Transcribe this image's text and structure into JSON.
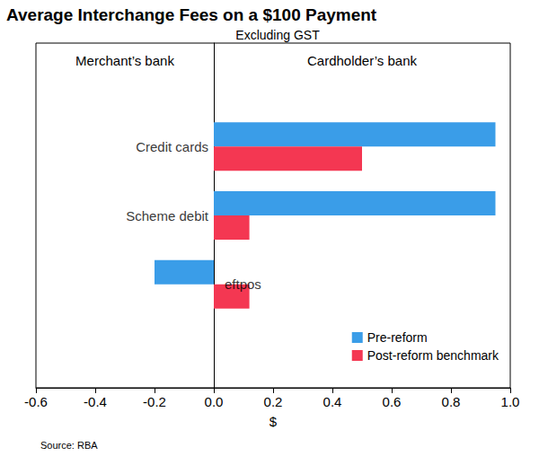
{
  "chart_data": {
    "type": "bar",
    "orientation": "horizontal",
    "title": "Average Interchange Fees on a $100 Payment",
    "subtitle": "Excluding GST",
    "categories": [
      "Credit cards",
      "Scheme debit",
      "eftpos"
    ],
    "series": [
      {
        "name": "Pre-reform",
        "color": "#3a9de8",
        "values": [
          0.95,
          0.95,
          -0.2
        ]
      },
      {
        "name": "Post-reform benchmark",
        "color": "#f43752",
        "values": [
          0.5,
          0.12,
          0.12
        ]
      }
    ],
    "xlabel": "$",
    "xlim": [
      -0.6,
      1.0
    ],
    "xticks": [
      -0.6,
      -0.4,
      -0.2,
      {
        "value": 0,
        "label": "0.0"
      },
      0.2,
      0.4,
      0.6,
      0.8,
      {
        "value": 1,
        "label": "1.0"
      }
    ],
    "annotations": [
      "Merchant’s bank",
      "Cardholder’s bank"
    ],
    "source": "Source: RBA",
    "legend": "bottom-right",
    "grid": false
  }
}
